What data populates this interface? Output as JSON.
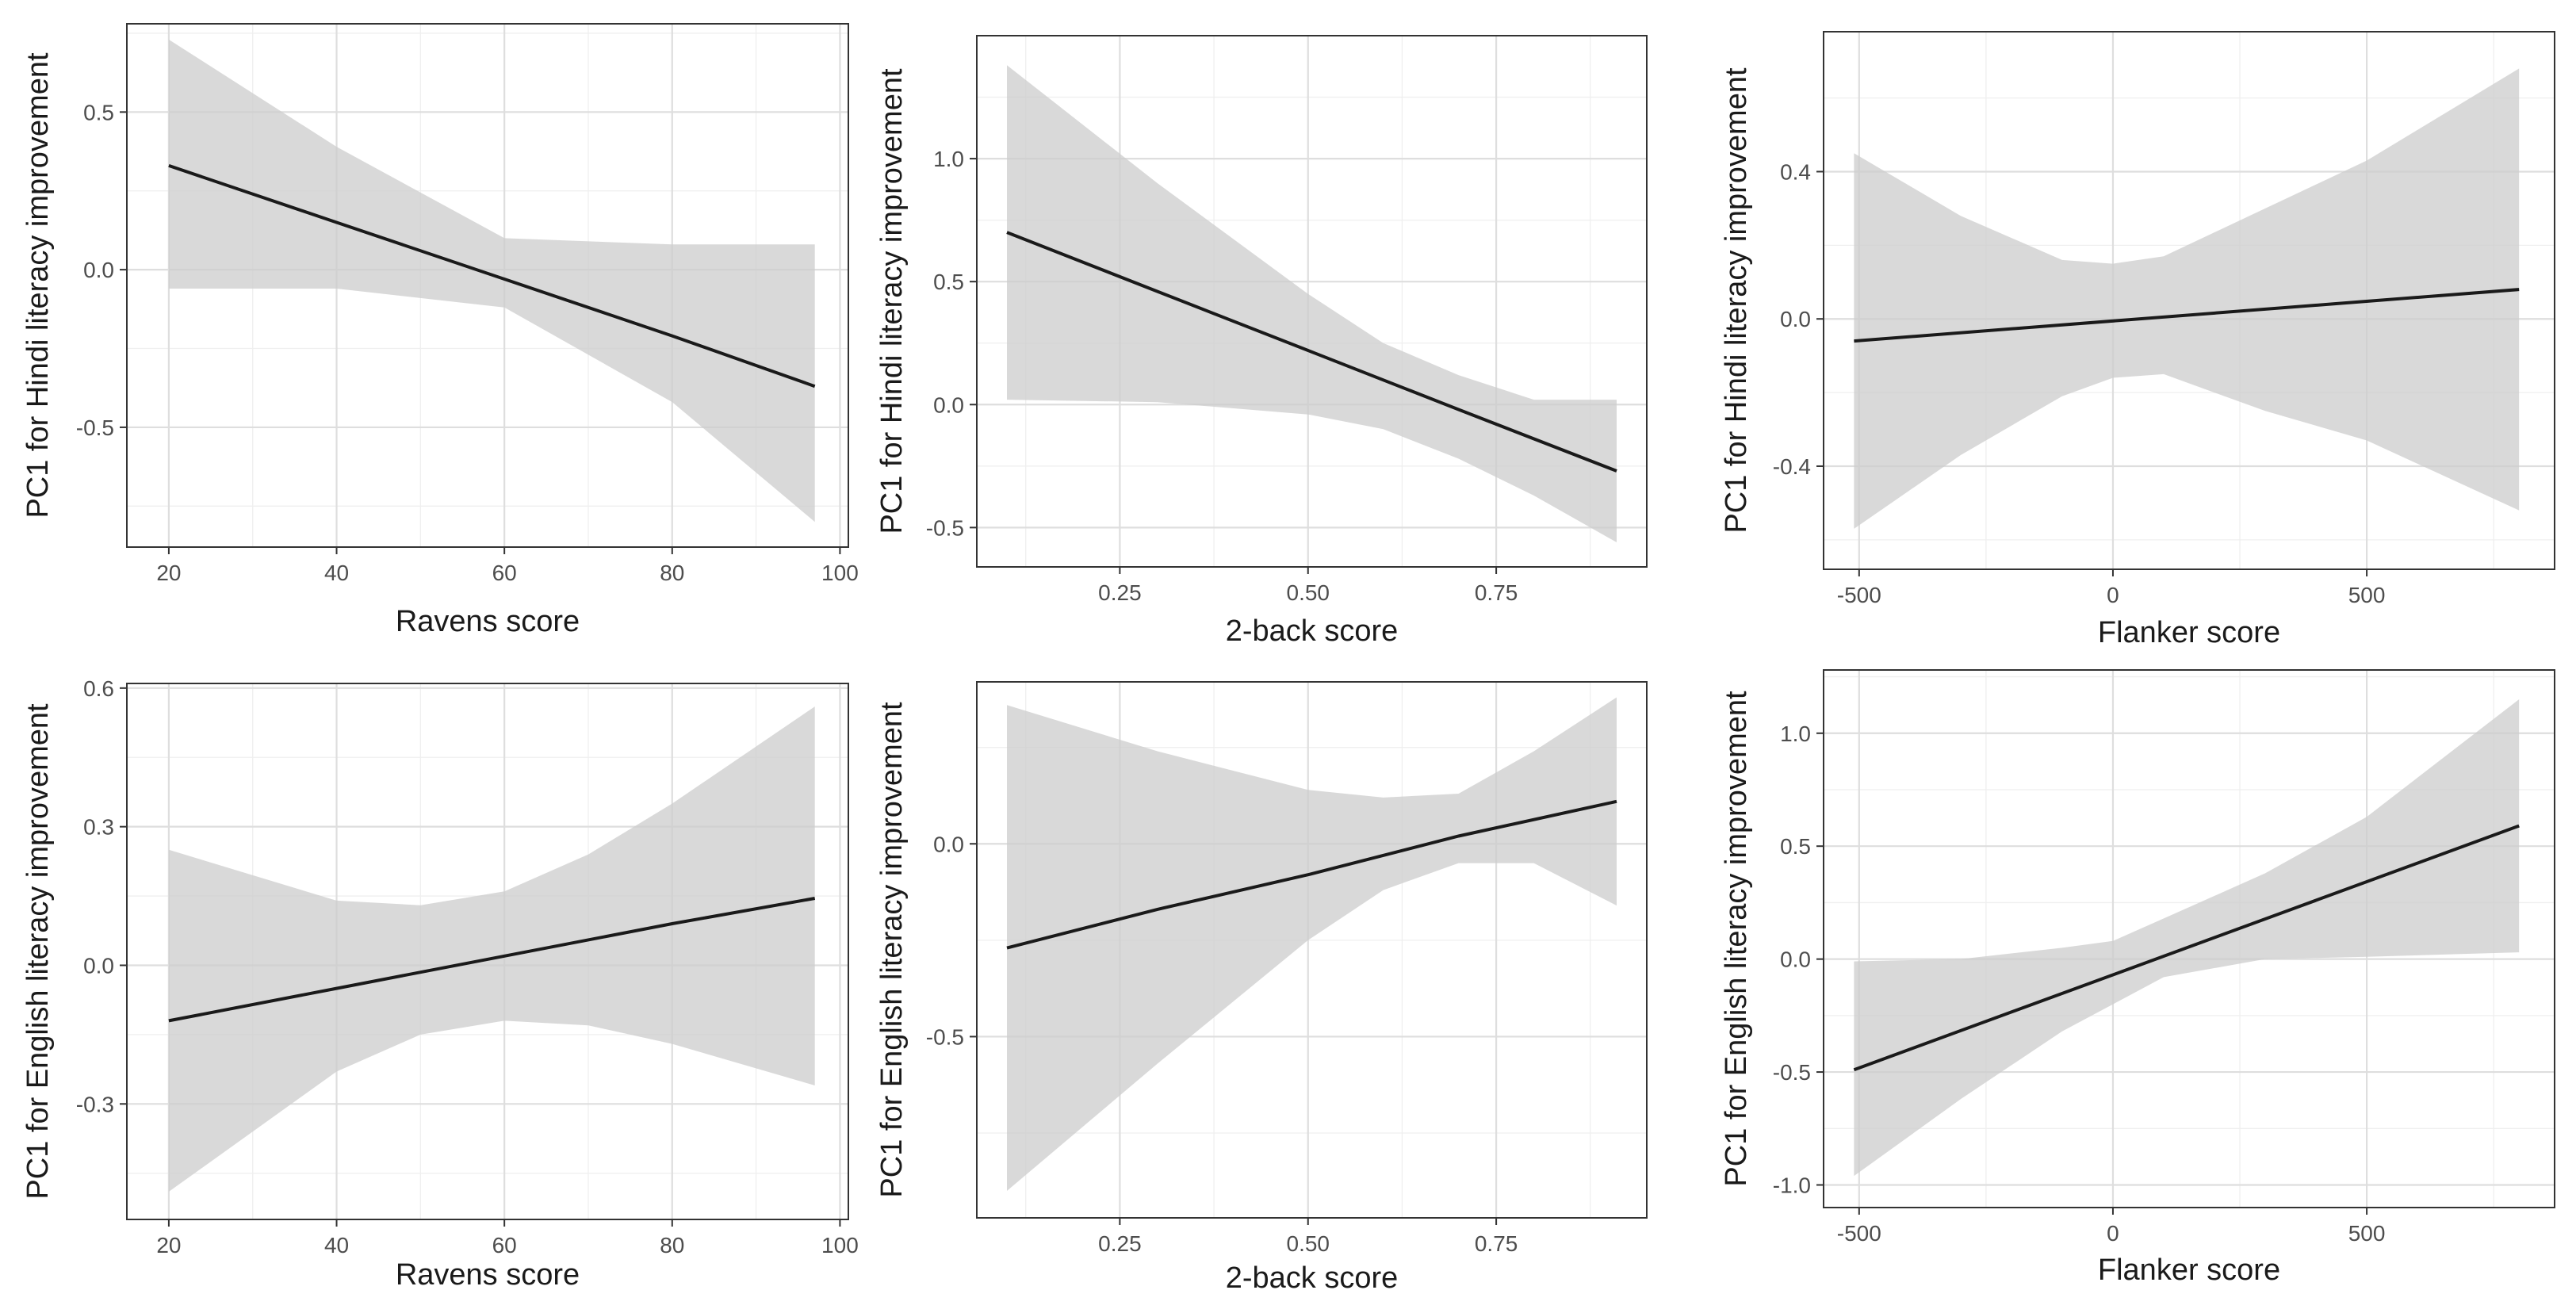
{
  "figure": {
    "colors": {
      "ribbon": "#cccccc",
      "line": "#1a1a1a",
      "grid_major": "#dedede",
      "grid_minor": "#efefef",
      "frame": "#333333"
    }
  },
  "chart_data": [
    {
      "id": "hindi-ravens",
      "type": "line",
      "title": "",
      "xlabel": "Ravens score",
      "ylabel": "PC1 for Hindi literacy improvement",
      "xlim": [
        15,
        101
      ],
      "ylim": [
        -0.88,
        0.78
      ],
      "xticks": [
        20,
        40,
        60,
        80,
        100
      ],
      "xtick_labels": [
        "20",
        "40",
        "60",
        "80",
        "100"
      ],
      "yticks": [
        -0.5,
        0.0,
        0.5
      ],
      "ytick_labels": [
        "-0.5",
        "0.0",
        "0.5"
      ],
      "x": [
        20,
        40,
        60,
        80,
        97
      ],
      "y": [
        0.33,
        0.15,
        -0.03,
        -0.21,
        -0.37
      ],
      "ci_x": [
        20,
        40,
        60,
        80,
        97
      ],
      "ci_lower": [
        -0.06,
        -0.06,
        -0.12,
        -0.42,
        -0.8
      ],
      "ci_upper": [
        0.73,
        0.39,
        0.1,
        0.08,
        0.08
      ]
    },
    {
      "id": "hindi-2back",
      "type": "line",
      "title": "",
      "xlabel": "2-back score",
      "ylabel": "PC1 for Hindi literacy improvement",
      "xlim": [
        0.06,
        0.95
      ],
      "ylim": [
        -0.66,
        1.5
      ],
      "xticks": [
        0.25,
        0.5,
        0.75
      ],
      "xtick_labels": [
        "0.25",
        "0.50",
        "0.75"
      ],
      "yticks": [
        -0.5,
        0.0,
        0.5,
        1.0
      ],
      "ytick_labels": [
        "-0.5",
        "0.0",
        "0.5",
        "1.0"
      ],
      "x": [
        0.1,
        0.3,
        0.5,
        0.7,
        0.91
      ],
      "y": [
        0.7,
        0.46,
        0.22,
        -0.02,
        -0.27
      ],
      "ci_x": [
        0.1,
        0.3,
        0.5,
        0.6,
        0.7,
        0.8,
        0.91
      ],
      "ci_lower": [
        0.02,
        0.01,
        -0.04,
        -0.1,
        -0.22,
        -0.37,
        -0.56
      ],
      "ci_upper": [
        1.38,
        0.9,
        0.45,
        0.25,
        0.12,
        0.02,
        0.02
      ]
    },
    {
      "id": "hindi-flanker",
      "type": "line",
      "title": "",
      "xlabel": "Flanker score",
      "ylabel": "PC1 for Hindi literacy improvement",
      "xlim": [
        -570,
        870
      ],
      "ylim": [
        -0.68,
        0.78
      ],
      "xticks": [
        -500,
        0,
        500
      ],
      "xtick_labels": [
        "-500",
        "0",
        "500"
      ],
      "yticks": [
        -0.4,
        0.0,
        0.4
      ],
      "ytick_labels": [
        "-0.4",
        "0.0",
        "0.4"
      ],
      "x": [
        -510,
        800
      ],
      "y": [
        -0.06,
        0.08
      ],
      "ci_x": [
        -510,
        -300,
        -100,
        0,
        100,
        300,
        500,
        800
      ],
      "ci_lower": [
        -0.57,
        -0.37,
        -0.21,
        -0.16,
        -0.15,
        -0.25,
        -0.33,
        -0.52
      ],
      "ci_upper": [
        0.45,
        0.28,
        0.16,
        0.15,
        0.17,
        0.3,
        0.43,
        0.68
      ]
    },
    {
      "id": "english-ravens",
      "type": "line",
      "title": "",
      "xlabel": "Ravens score",
      "ylabel": "PC1 for English literacy improvement",
      "xlim": [
        15,
        101
      ],
      "ylim": [
        -0.55,
        0.61
      ],
      "xticks": [
        20,
        40,
        60,
        80,
        100
      ],
      "xtick_labels": [
        "20",
        "40",
        "60",
        "80",
        "100"
      ],
      "yticks": [
        -0.3,
        0.0,
        0.3,
        0.6
      ],
      "ytick_labels": [
        "-0.3",
        "0.0",
        "0.3",
        "0.6"
      ],
      "x": [
        20,
        40,
        60,
        80,
        97
      ],
      "y": [
        -0.12,
        -0.05,
        0.02,
        0.09,
        0.145
      ],
      "ci_x": [
        20,
        40,
        50,
        60,
        70,
        80,
        97
      ],
      "ci_lower": [
        -0.49,
        -0.23,
        -0.15,
        -0.12,
        -0.13,
        -0.17,
        -0.26
      ],
      "ci_upper": [
        0.25,
        0.14,
        0.13,
        0.16,
        0.24,
        0.35,
        0.56
      ]
    },
    {
      "id": "english-2back",
      "type": "line",
      "title": "",
      "xlabel": "2-back score",
      "ylabel": "PC1 for English literacy improvement",
      "xlim": [
        0.06,
        0.95
      ],
      "ylim": [
        -0.97,
        0.42
      ],
      "xticks": [
        0.25,
        0.5,
        0.75
      ],
      "xtick_labels": [
        "0.25",
        "0.50",
        "0.75"
      ],
      "yticks": [
        -0.5,
        0.0
      ],
      "ytick_labels": [
        "-0.5",
        "0.0"
      ],
      "x": [
        0.1,
        0.3,
        0.5,
        0.7,
        0.91
      ],
      "y": [
        -0.27,
        -0.17,
        -0.08,
        0.02,
        0.11
      ],
      "ci_x": [
        0.1,
        0.3,
        0.5,
        0.6,
        0.7,
        0.8,
        0.91
      ],
      "ci_lower": [
        -0.9,
        -0.57,
        -0.25,
        -0.12,
        -0.05,
        -0.05,
        -0.16
      ],
      "ci_upper": [
        0.36,
        0.24,
        0.14,
        0.12,
        0.13,
        0.24,
        0.38
      ]
    },
    {
      "id": "english-flanker",
      "type": "line",
      "title": "",
      "xlabel": "Flanker score",
      "ylabel": "PC1 for English literacy improvement",
      "xlim": [
        -570,
        870
      ],
      "ylim": [
        -1.1,
        1.28
      ],
      "xticks": [
        -500,
        0,
        500
      ],
      "xtick_labels": [
        "-500",
        "0",
        "500"
      ],
      "yticks": [
        -1.0,
        -0.5,
        0.0,
        0.5,
        1.0
      ],
      "ytick_labels": [
        "-1.0",
        "-0.5",
        "0.0",
        "0.5",
        "1.0"
      ],
      "x": [
        -510,
        800
      ],
      "y": [
        -0.49,
        0.59
      ],
      "ci_x": [
        -510,
        -300,
        -100,
        0,
        100,
        300,
        500,
        800
      ],
      "ci_lower": [
        -0.96,
        -0.62,
        -0.32,
        -0.2,
        -0.08,
        0.0,
        0.01,
        0.03
      ],
      "ci_upper": [
        -0.01,
        0.0,
        0.05,
        0.08,
        0.18,
        0.38,
        0.63,
        1.15
      ]
    }
  ]
}
